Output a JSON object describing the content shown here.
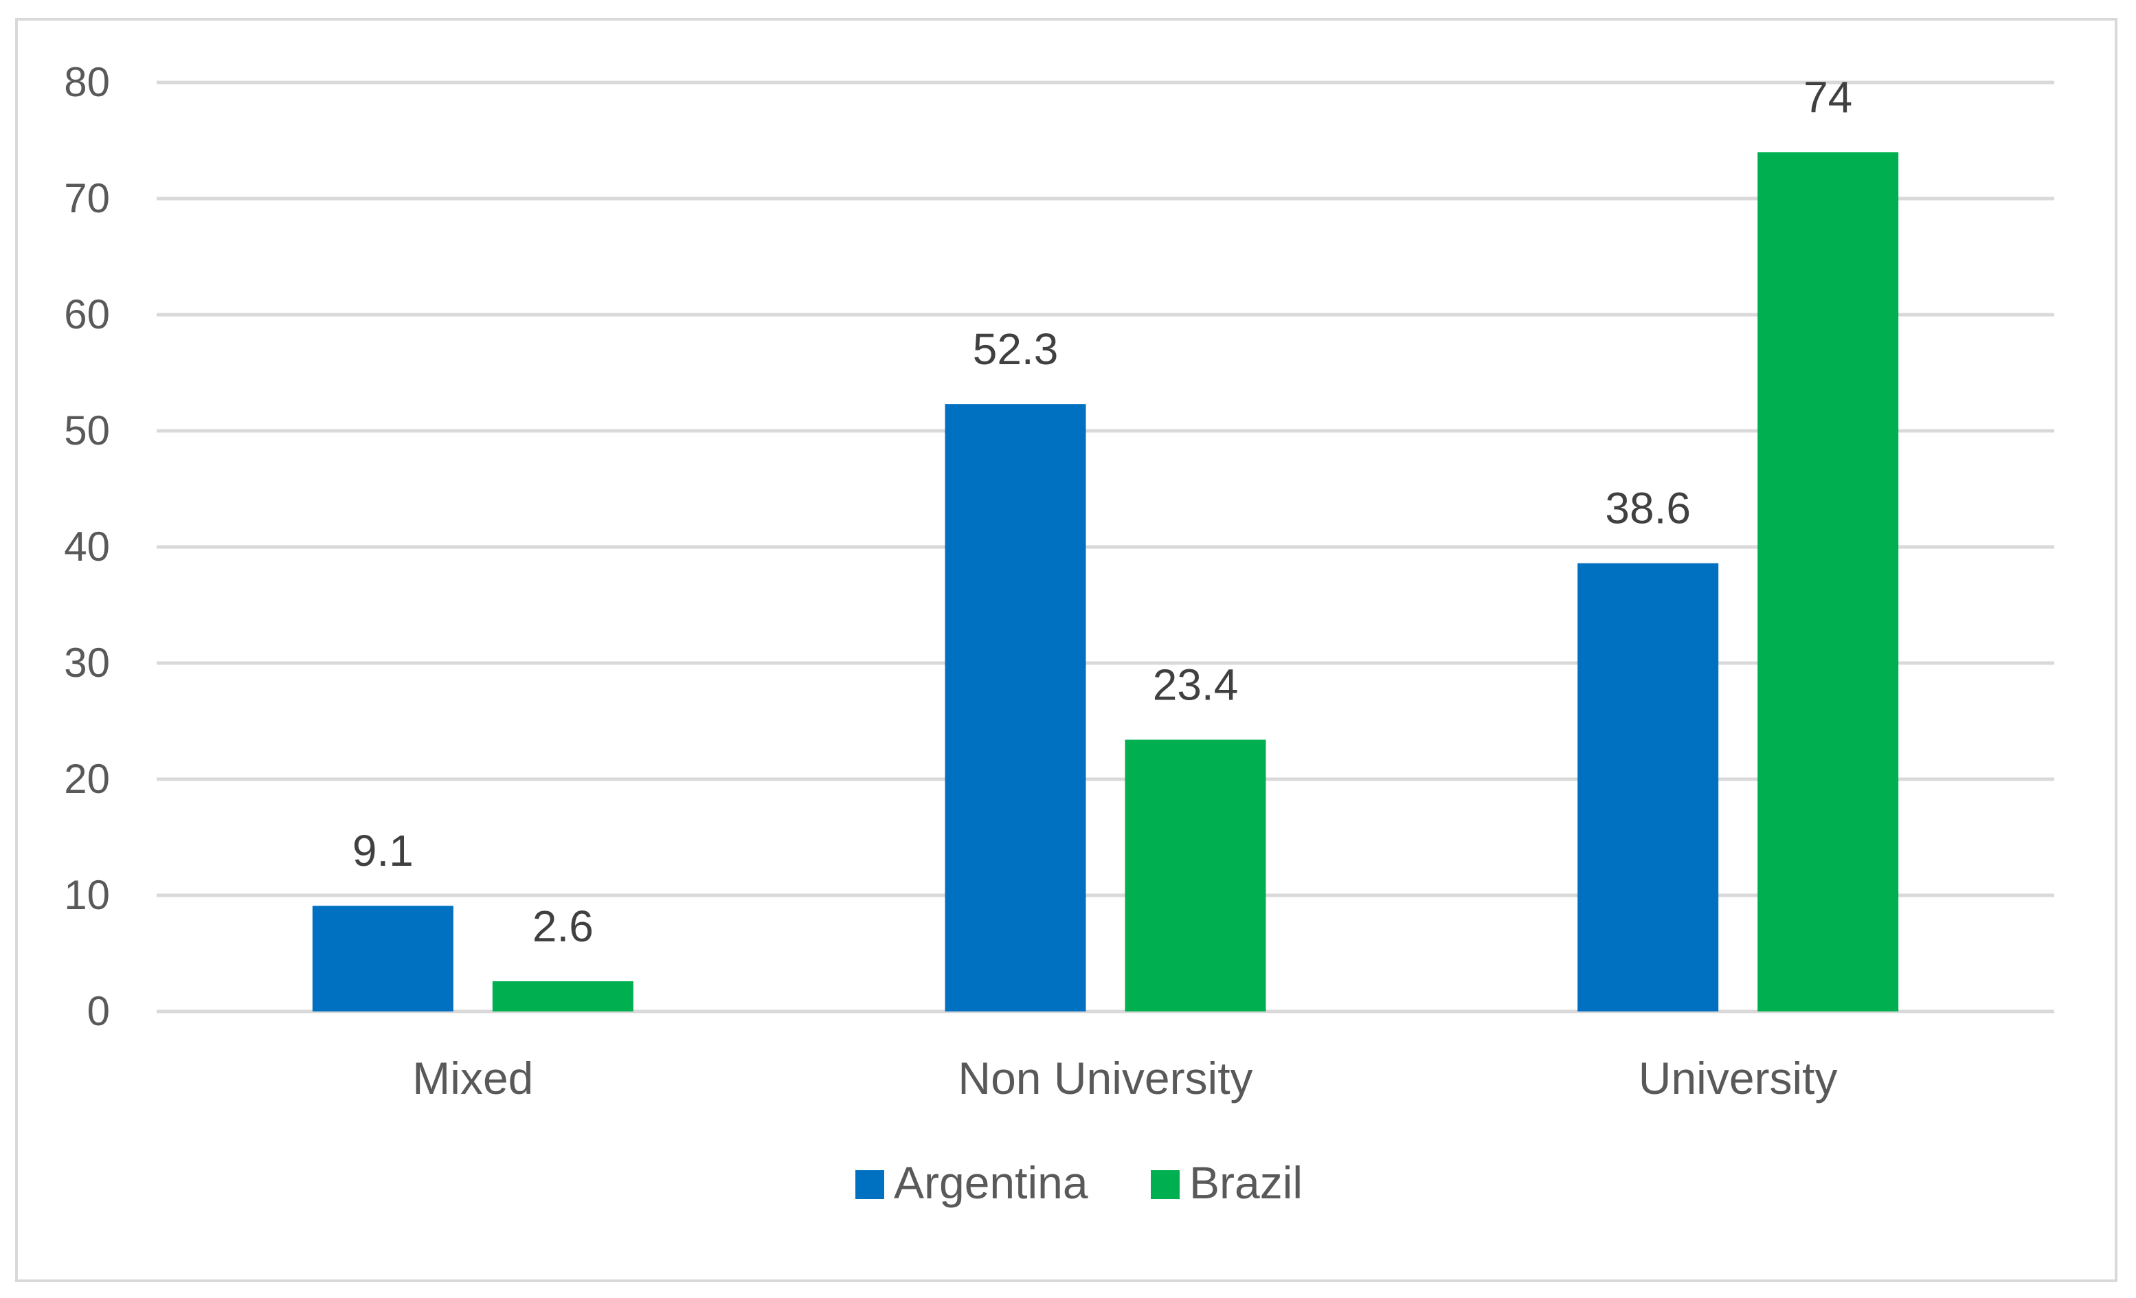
{
  "chart_data": {
    "type": "bar",
    "categories": [
      "Mixed",
      "Non University",
      "University"
    ],
    "series": [
      {
        "name": "Argentina",
        "color": "#0070C0",
        "values": [
          9.1,
          52.3,
          38.6
        ],
        "labels": [
          "9.1",
          "52.3",
          "38.6"
        ]
      },
      {
        "name": "Brazil",
        "color": "#00B050",
        "values": [
          2.6,
          23.4,
          74
        ],
        "labels": [
          "2.6",
          "23.4",
          "74"
        ]
      }
    ],
    "title": "",
    "xlabel": "",
    "ylabel": "",
    "ylim": [
      0,
      80
    ],
    "yticks": [
      "0",
      "10",
      "20",
      "30",
      "40",
      "50",
      "60",
      "70",
      "80"
    ],
    "grid": true,
    "legend": "bottom-center",
    "gridline_color": "#d9d9d9"
  }
}
